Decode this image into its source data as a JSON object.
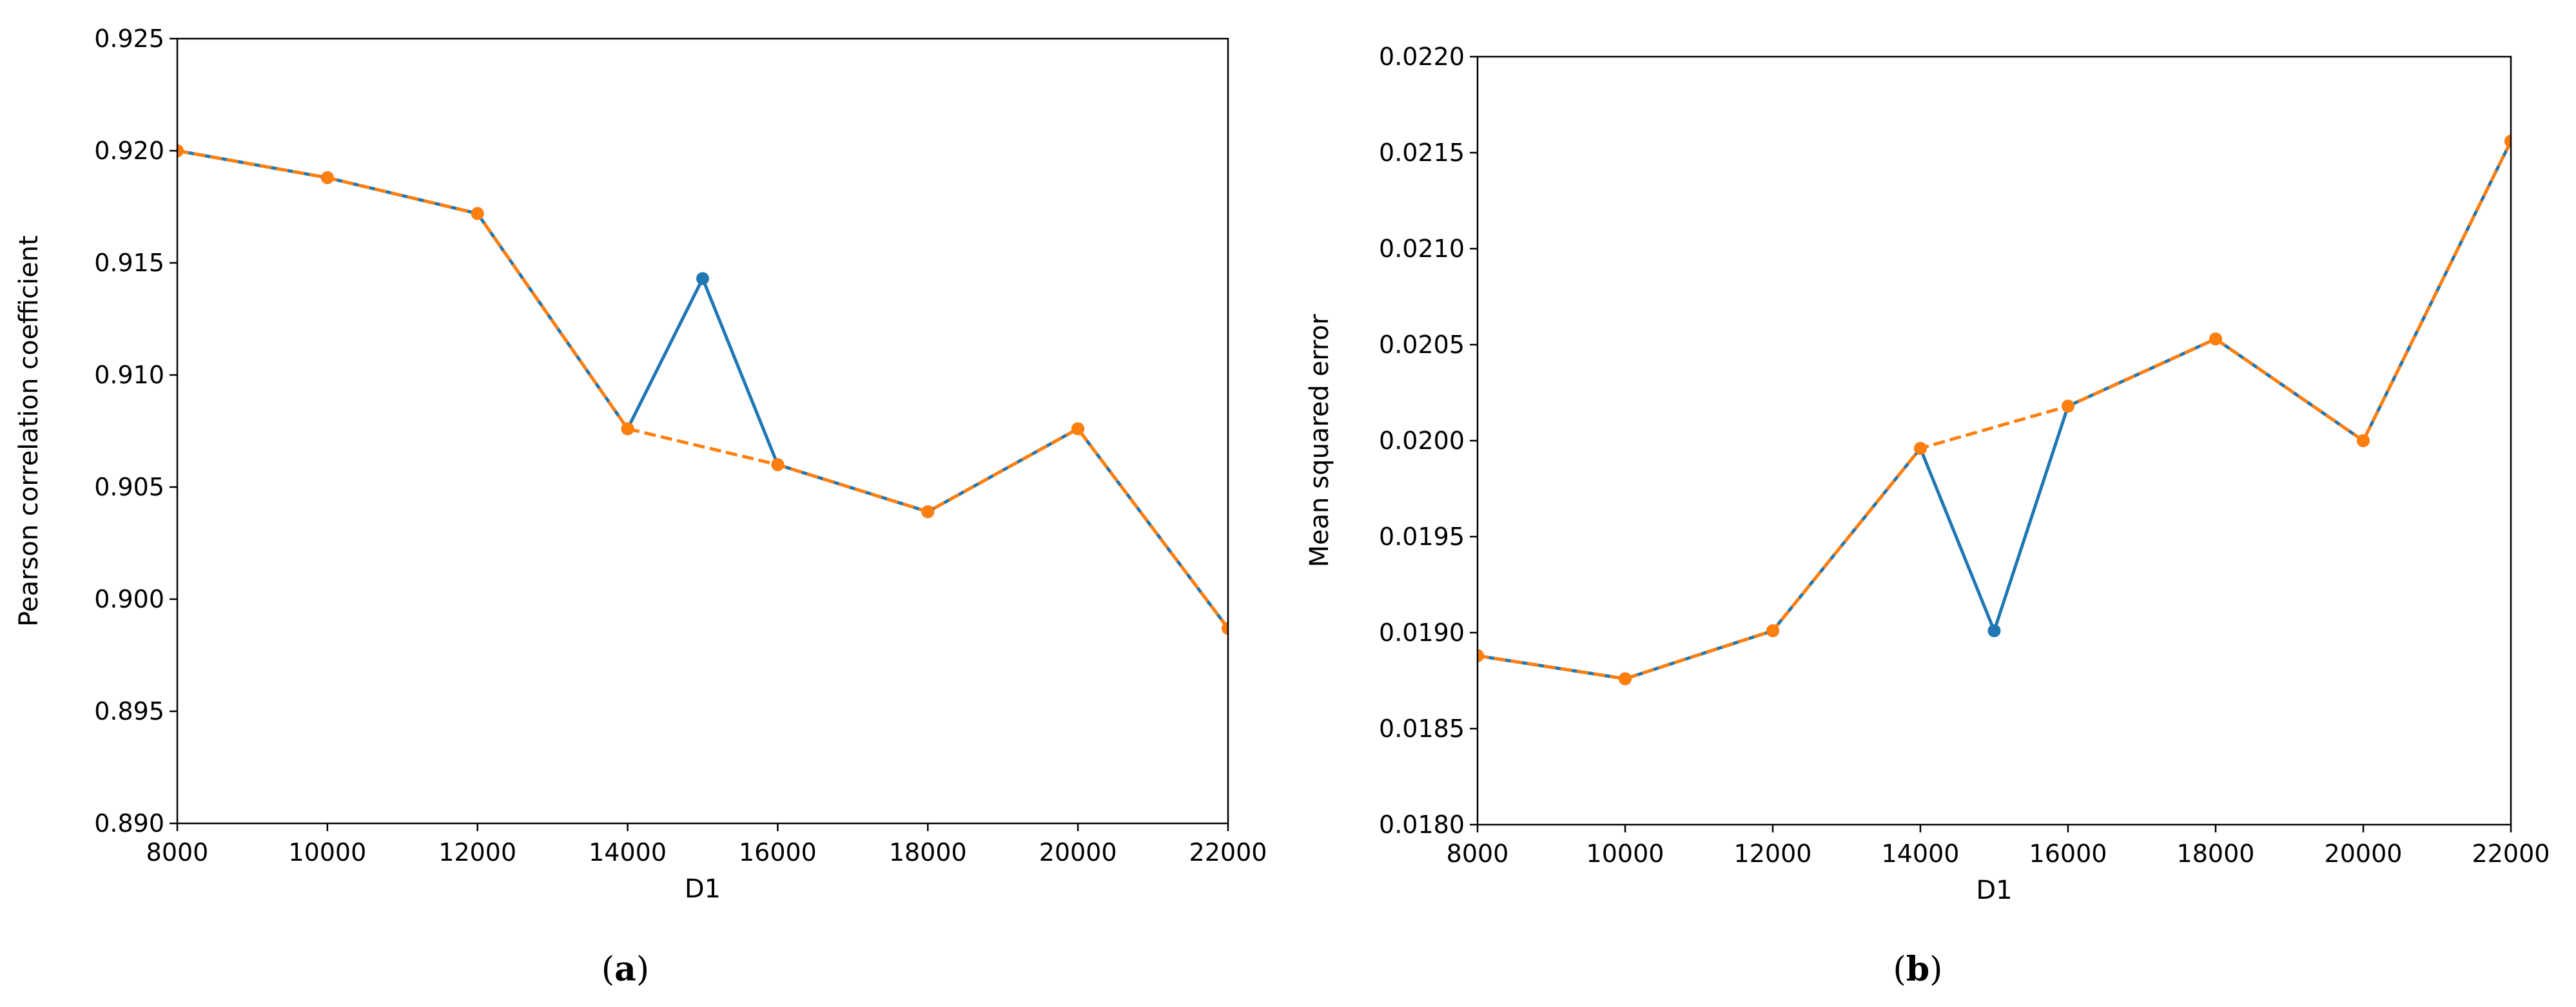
{
  "chart_data": [
    {
      "type": "line",
      "caption_open": "(",
      "caption_letter": "a",
      "caption_close": ")",
      "xlabel": "D1",
      "ylabel": "Pearson correlation coefficient",
      "xlim": [
        8000,
        22000
      ],
      "ylim": [
        0.89,
        0.925
      ],
      "xticks": [
        8000,
        10000,
        12000,
        14000,
        16000,
        18000,
        20000,
        22000
      ],
      "xtick_labels": [
        "8000",
        "10000",
        "12000",
        "14000",
        "16000",
        "18000",
        "20000",
        "22000"
      ],
      "yticks": [
        0.89,
        0.895,
        0.9,
        0.905,
        0.91,
        0.915,
        0.92,
        0.925
      ],
      "ytick_labels": [
        "0.890",
        "0.895",
        "0.900",
        "0.905",
        "0.910",
        "0.915",
        "0.920",
        "0.925"
      ],
      "grid": false,
      "series": [
        {
          "color": "#1f77b4",
          "line_style": "solid",
          "marker": "circle",
          "x": [
            8000,
            10000,
            12000,
            14000,
            15000,
            16000,
            18000,
            20000,
            22000
          ],
          "y": [
            0.92,
            0.9188,
            0.9172,
            0.9076,
            0.9143,
            0.906,
            0.9039,
            0.9076,
            0.8987
          ]
        },
        {
          "color": "#ff7f0e",
          "line_style": "dashed",
          "marker": "circle",
          "x": [
            8000,
            10000,
            12000,
            14000,
            16000,
            18000,
            20000,
            22000
          ],
          "y": [
            0.92,
            0.9188,
            0.9172,
            0.9076,
            0.906,
            0.9039,
            0.9076,
            0.8987
          ]
        }
      ]
    },
    {
      "type": "line",
      "caption_open": "(",
      "caption_letter": "b",
      "caption_close": ")",
      "xlabel": "D1",
      "ylabel": "Mean squared error",
      "xlim": [
        8000,
        22000
      ],
      "ylim": [
        0.018,
        0.022
      ],
      "xticks": [
        8000,
        10000,
        12000,
        14000,
        16000,
        18000,
        20000,
        22000
      ],
      "xtick_labels": [
        "8000",
        "10000",
        "12000",
        "14000",
        "16000",
        "18000",
        "20000",
        "22000"
      ],
      "yticks": [
        0.018,
        0.0185,
        0.019,
        0.0195,
        0.02,
        0.0205,
        0.021,
        0.0215,
        0.022
      ],
      "ytick_labels": [
        "0.0180",
        "0.0185",
        "0.0190",
        "0.0195",
        "0.0200",
        "0.0205",
        "0.0210",
        "0.0215",
        "0.0220"
      ],
      "grid": false,
      "series": [
        {
          "color": "#1f77b4",
          "line_style": "solid",
          "marker": "circle",
          "x": [
            8000,
            10000,
            12000,
            14000,
            15000,
            16000,
            18000,
            20000,
            22000
          ],
          "y": [
            0.01888,
            0.01876,
            0.01901,
            0.01996,
            0.01901,
            0.02018,
            0.02053,
            0.02,
            0.02156
          ]
        },
        {
          "color": "#ff7f0e",
          "line_style": "dashed",
          "marker": "circle",
          "x": [
            8000,
            10000,
            12000,
            14000,
            16000,
            18000,
            20000,
            22000
          ],
          "y": [
            0.01888,
            0.01876,
            0.01901,
            0.01996,
            0.02018,
            0.02053,
            0.02,
            0.02156
          ]
        }
      ]
    }
  ]
}
